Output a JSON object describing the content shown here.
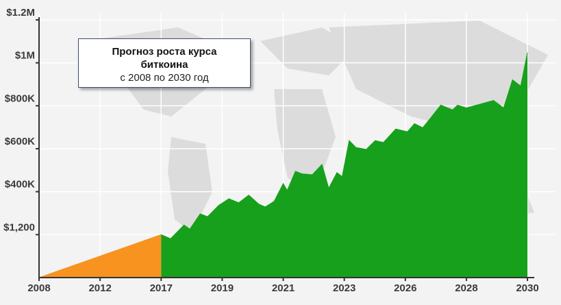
{
  "chart_data": {
    "type": "area",
    "title": "Прогноз роста курса биткоина",
    "subtitle": "с 2008 по 2030 год",
    "xlim": [
      2008,
      2030
    ],
    "xticks": [
      2008,
      2012,
      2017,
      2019,
      2021,
      2023,
      2026,
      2028,
      2030
    ],
    "ylim": [
      0,
      1200000
    ],
    "yticks": [
      {
        "value": 1200,
        "label": "$1,200"
      },
      {
        "value": 400000,
        "label": "$400K"
      },
      {
        "value": 600000,
        "label": "$600K"
      },
      {
        "value": 800000,
        "label": "$800K"
      },
      {
        "value": 1000000,
        "label": "$1M"
      },
      {
        "value": 1200000,
        "label": "$1.2M"
      }
    ],
    "grid": true,
    "series": [
      {
        "color": "#f7931e",
        "x": [
          2008,
          2017
        ],
        "values": [
          0,
          1200
        ]
      },
      {
        "color": "#17a01c",
        "x": [
          2017,
          2017.31,
          2017.75,
          2017.94,
          2018.28,
          2018.52,
          2018.88,
          2019.22,
          2019.54,
          2019.87,
          2020.2,
          2020.41,
          2020.7,
          2021,
          2021.13,
          2021.4,
          2021.62,
          2021.95,
          2022.27,
          2022.49,
          2022.76,
          2022.93,
          2023.24,
          2023.57,
          2024.08,
          2024.52,
          2024.92,
          2025.53,
          2026.07,
          2026.3,
          2026.57,
          2026.86,
          2027.16,
          2027.55,
          2027.71,
          2028,
          2028.89,
          2029.22,
          2029.51,
          2029.78,
          2030
        ],
        "values": [
          1200,
          1086,
          91000,
          52700,
          194000,
          168000,
          271000,
          335000,
          297000,
          368000,
          284000,
          258000,
          310000,
          438000,
          406000,
          495000,
          483000,
          479000,
          527000,
          416000,
          489000,
          470000,
          638000,
          606000,
          597000,
          638000,
          629000,
          692000,
          679000,
          717000,
          698000,
          749000,
          803000,
          781000,
          803000,
          790000,
          825000,
          790000,
          921000,
          892000,
          1048000
        ]
      }
    ]
  }
}
